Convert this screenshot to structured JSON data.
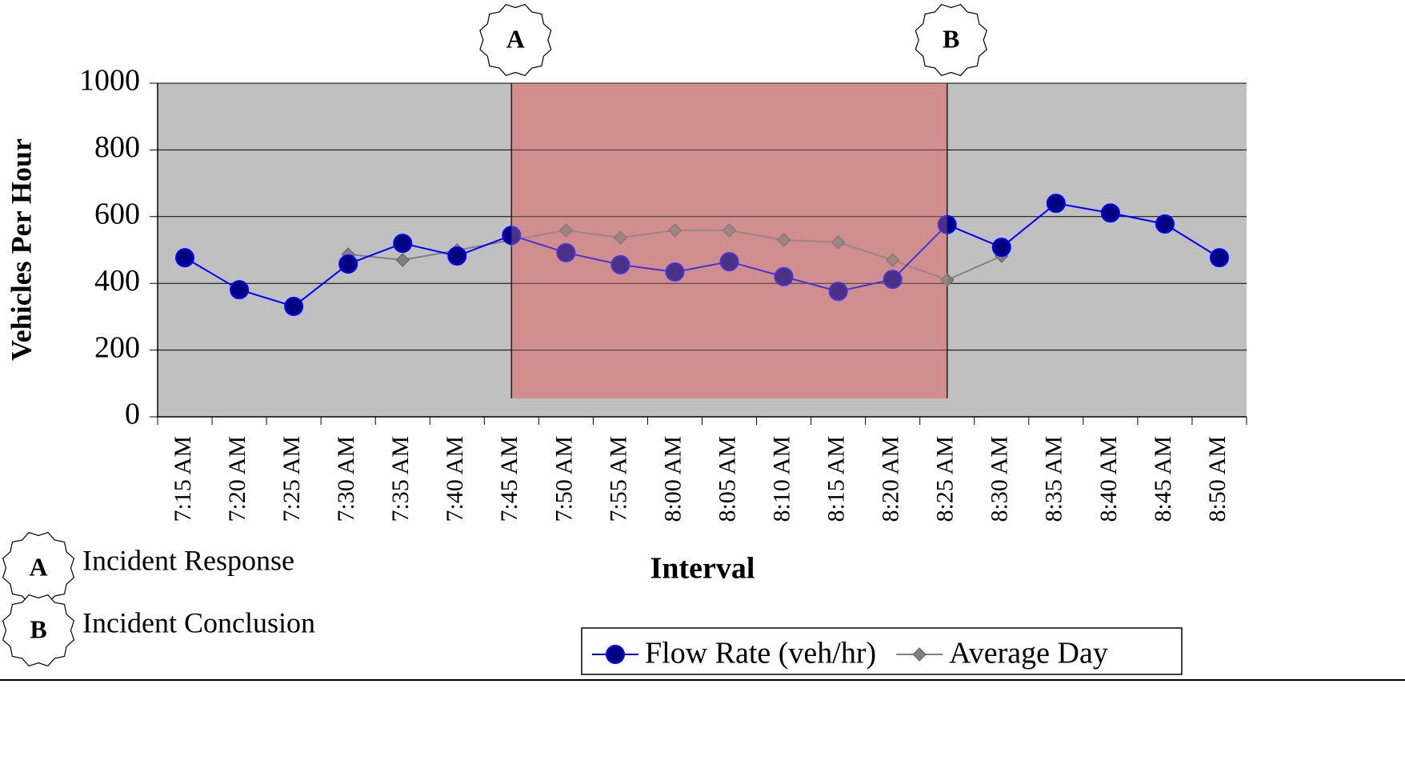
{
  "chart_data": {
    "type": "line",
    "x_label": "Interval",
    "y_label": "Vehicles Per Hour",
    "categories": [
      "7:15 AM",
      "7:20 AM",
      "7:25 AM",
      "7:30 AM",
      "7:35 AM",
      "7:40 AM",
      "7:45 AM",
      "7:50 AM",
      "7:55 AM",
      "8:00 AM",
      "8:05 AM",
      "8:10 AM",
      "8:15 AM",
      "8:20 AM",
      "8:25 AM",
      "8:30 AM",
      "8:35 AM",
      "8:40 AM",
      "8:45 AM",
      "8:50 AM"
    ],
    "series": [
      {
        "name": "Flow Rate (veh/hr)",
        "color": "#0000ff",
        "marker_color": "#000080",
        "marker": "circle",
        "values": [
          477,
          381,
          331,
          458,
          520,
          482,
          544,
          492,
          456,
          434,
          465,
          420,
          376,
          412,
          576,
          508,
          640,
          611,
          578,
          477
        ]
      },
      {
        "name": "Average Day",
        "color": "#808080",
        "marker_color": "#808080",
        "marker": "diamond",
        "values": [
          null,
          null,
          null,
          487,
          470,
          499,
          530,
          559,
          537,
          559,
          559,
          530,
          523,
          470,
          410,
          482,
          null,
          null,
          null,
          null
        ]
      }
    ],
    "ylim": [
      0,
      1000
    ],
    "yticks": [
      0,
      200,
      400,
      600,
      800,
      1000
    ],
    "grid": true,
    "plot_color": "#c0c0c0",
    "region_color": "#d08e8e",
    "annotations": [
      {
        "label": "A",
        "at": 6,
        "text": "Incident Response"
      },
      {
        "label": "B",
        "at": 14,
        "text": "Incident Conclusion"
      }
    ],
    "legend": "bottom-right"
  }
}
